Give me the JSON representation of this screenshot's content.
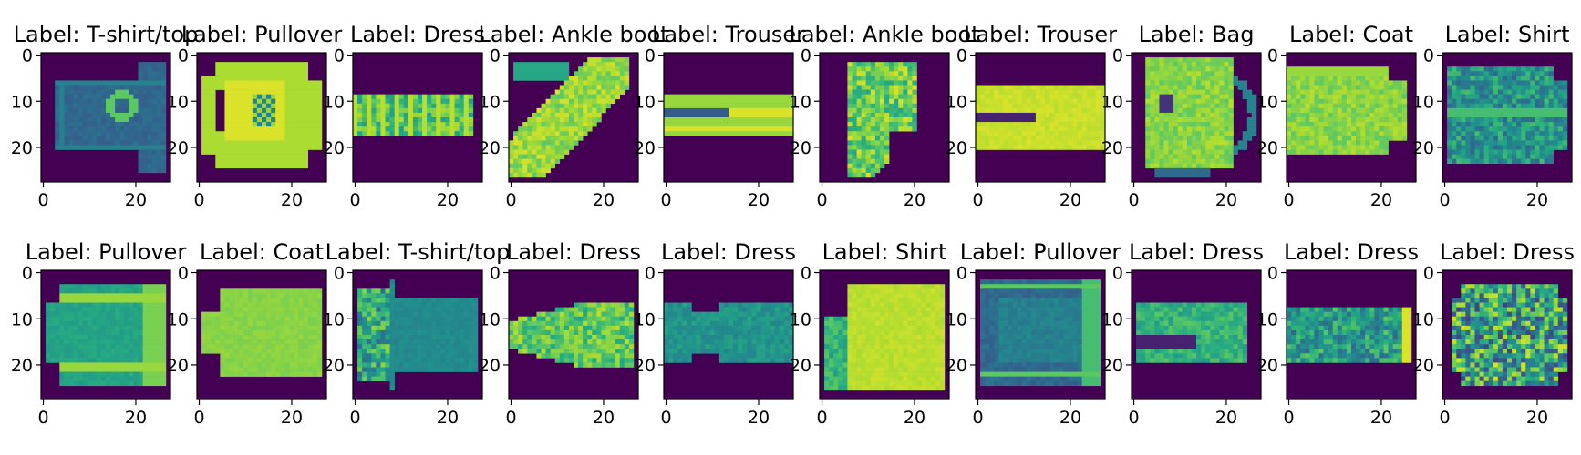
{
  "chart_data": {
    "type": "heatmap",
    "layout": {
      "rows": 2,
      "cols": 10
    },
    "xlim": [
      0,
      27
    ],
    "ylim": [
      27,
      0
    ],
    "xticks": [
      "0",
      "20"
    ],
    "yticks": [
      "0",
      "10",
      "20"
    ],
    "colormap": "viridis",
    "background_color": "#440154",
    "panels": [
      {
        "title": "Label: T-shirt/top",
        "shape": "tshirt"
      },
      {
        "title": "Label: Pullover",
        "shape": "pullover"
      },
      {
        "title": "Label: Dress",
        "shape": "dress-h"
      },
      {
        "title": "Label: Ankle boot",
        "shape": "boot1"
      },
      {
        "title": "Label: Trouser",
        "shape": "trouser-thin"
      },
      {
        "title": "Label: Ankle boot",
        "shape": "boot2"
      },
      {
        "title": "Label: Trouser",
        "shape": "trouser-wide"
      },
      {
        "title": "Label: Bag",
        "shape": "bag"
      },
      {
        "title": "Label: Coat",
        "shape": "coat"
      },
      {
        "title": "Label: Shirt",
        "shape": "shirt"
      },
      {
        "title": "Label: Pullover",
        "shape": "pullover2"
      },
      {
        "title": "Label: Coat",
        "shape": "coat2"
      },
      {
        "title": "Label: T-shirt/top",
        "shape": "tshirt2"
      },
      {
        "title": "Label: Dress",
        "shape": "dress2"
      },
      {
        "title": "Label: Dress",
        "shape": "dress3"
      },
      {
        "title": "Label: Shirt",
        "shape": "shirt2"
      },
      {
        "title": "Label: Pullover",
        "shape": "pullover3"
      },
      {
        "title": "Label: Dress",
        "shape": "dress4"
      },
      {
        "title": "Label: Dress",
        "shape": "dress5"
      },
      {
        "title": "Label: Dress",
        "shape": "dress6"
      }
    ]
  }
}
